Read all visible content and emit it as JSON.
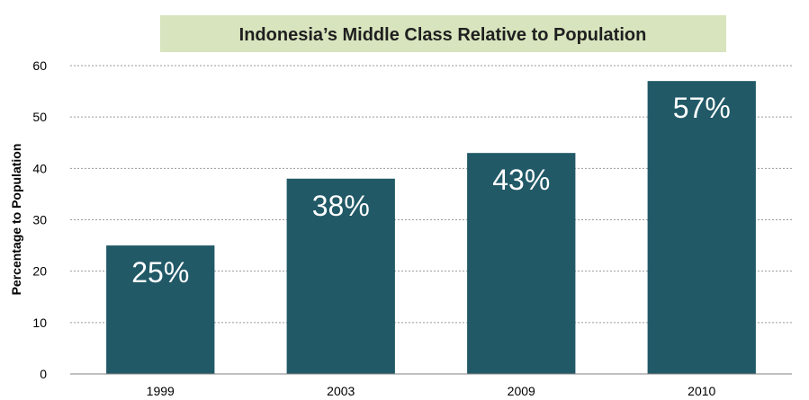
{
  "chart_data": {
    "type": "bar",
    "title": "Indonesia’s  Middle Class Relative to Population",
    "xlabel": "",
    "ylabel": "Percentage to Population",
    "categories": [
      "1999",
      "2003",
      "2009",
      "2010"
    ],
    "values": [
      25,
      38,
      43,
      57
    ],
    "data_labels": [
      "25%",
      "38%",
      "43%",
      "57%"
    ],
    "ylim": [
      0,
      60
    ],
    "yticks": [
      "0",
      "10",
      "20",
      "30",
      "40",
      "50",
      "60"
    ],
    "grid": true,
    "legend": "none",
    "colors": {
      "bar": "#215967",
      "title_background": "#d7e4bd",
      "label": "#ffffff"
    }
  }
}
